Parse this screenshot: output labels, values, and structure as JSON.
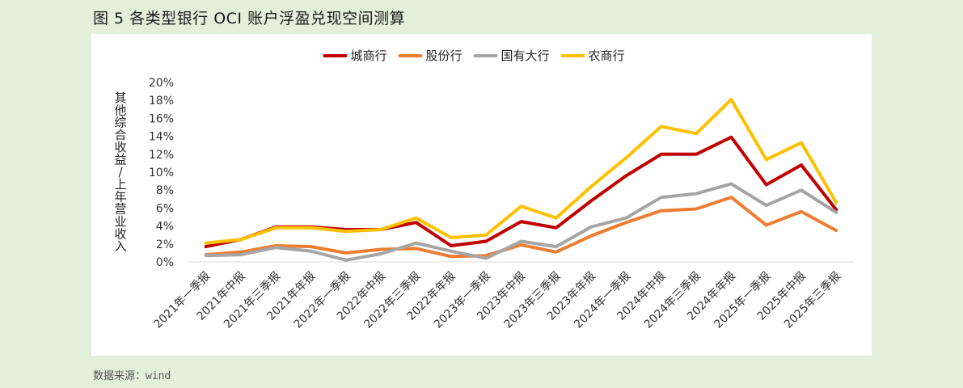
{
  "figure": {
    "title": "图 5 各类型银行 OCI 账户浮盈兑现空间测算",
    "source": "数据来源：wind"
  },
  "colors": {
    "background": "#e2efda",
    "panel": "#ffffff",
    "axis": "#d9d9d9"
  },
  "chart_data": {
    "type": "line",
    "title": "",
    "ylabel": "其他综合收益/上年营业收入",
    "xlabel": "",
    "ylim": [
      0,
      20
    ],
    "yticks": [
      "0%",
      "2%",
      "4%",
      "6%",
      "8%",
      "10%",
      "12%",
      "14%",
      "16%",
      "18%",
      "20%"
    ],
    "legend_position": "top-center",
    "grid": false,
    "categories": [
      "2021年一季报",
      "2021年中报",
      "2021年三季报",
      "2021年年报",
      "2022年一季报",
      "2022年中报",
      "2022年三季报",
      "2022年年报",
      "2023年一季报",
      "2023年中报",
      "2023年三季报",
      "2023年年报",
      "2024年一季报",
      "2024年中报",
      "2024年三季报",
      "2024年年报",
      "2025年一季报",
      "2025年中报",
      "2025年三季报"
    ],
    "series": [
      {
        "name": "城商行",
        "color": "#c00000",
        "values": [
          1.7,
          2.5,
          3.9,
          3.9,
          3.6,
          3.6,
          4.4,
          1.8,
          2.3,
          4.5,
          3.8,
          6.8,
          9.6,
          12.0,
          12.0,
          13.9,
          8.6,
          10.8,
          5.8
        ]
      },
      {
        "name": "股份行",
        "color": "#ed7d31",
        "values": [
          0.8,
          1.1,
          1.8,
          1.7,
          1.0,
          1.4,
          1.5,
          0.6,
          0.7,
          1.9,
          1.1,
          2.9,
          4.4,
          5.7,
          5.9,
          7.2,
          4.1,
          5.6,
          3.5
        ]
      },
      {
        "name": "国有大行",
        "color": "#a5a5a5",
        "values": [
          0.7,
          0.8,
          1.6,
          1.2,
          0.2,
          0.9,
          2.1,
          1.2,
          0.4,
          2.3,
          1.7,
          3.9,
          4.9,
          7.2,
          7.6,
          8.7,
          6.3,
          8.0,
          5.5
        ]
      },
      {
        "name": "农商行",
        "color": "#ffc000",
        "values": [
          2.1,
          2.5,
          3.8,
          3.8,
          3.4,
          3.6,
          4.9,
          2.7,
          3.0,
          6.2,
          4.9,
          8.4,
          11.6,
          15.1,
          14.3,
          18.1,
          11.4,
          13.3,
          6.6
        ]
      }
    ]
  }
}
